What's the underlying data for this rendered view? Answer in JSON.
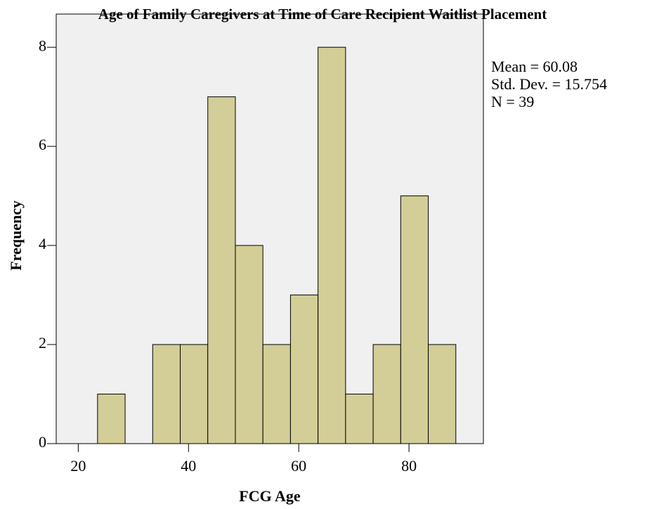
{
  "chart_data": {
    "type": "histogram",
    "title": "Age of Family Caregivers at Time of Care Recipient Waitlist Placement",
    "x_label": "FCG Age",
    "y_label": "Frequency",
    "annotations": [
      "Mean = 60.08",
      "Std. Dev. = 15.754",
      "N = 39"
    ],
    "bins": [
      23.5,
      28.5,
      33.5,
      38.5,
      43.5,
      48.5,
      53.5,
      58.5,
      63.5,
      68.5,
      73.5,
      78.5,
      83.5,
      88.5
    ],
    "counts": [
      1,
      0,
      2,
      2,
      7,
      4,
      2,
      3,
      8,
      1,
      2,
      5,
      2
    ],
    "color": "#d3ce97",
    "xlim": [
      16,
      93.5
    ],
    "xticks": [
      20,
      40,
      60,
      80
    ],
    "ylim": [
      0,
      8.67
    ],
    "yticks": [
      0,
      2,
      4,
      6,
      8
    ]
  }
}
